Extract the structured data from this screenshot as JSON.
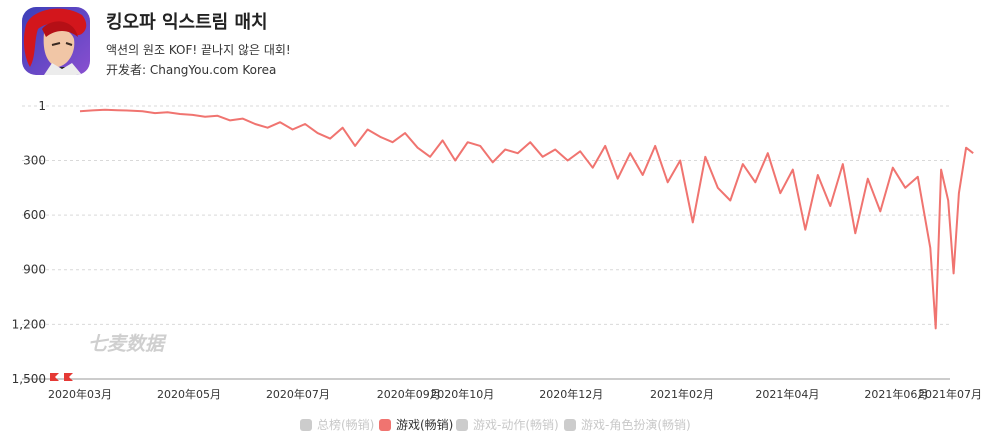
{
  "app": {
    "title": "킹오파 익스트림 매치",
    "subtitle": "액션의 원조 KOF! 끝나지 않은 대회!",
    "developer": "开发者: ChangYou.com Korea",
    "icon": "fighter-portrait-icon"
  },
  "watermark": "七麦数据",
  "colors": {
    "line": "#f07470",
    "grid": "#d9d9d9",
    "axis_text": "#333333",
    "legend_inactive": "#cccccc",
    "legend_active": "#f07470"
  },
  "legend": [
    {
      "label": "总榜(畅销)",
      "active": false
    },
    {
      "label": "游戏(畅销)",
      "active": true
    },
    {
      "label": "游戏-动作(畅销)",
      "active": false
    },
    {
      "label": "游戏-角色扮演(畅销)",
      "active": false
    }
  ],
  "chart_data": {
    "type": "line",
    "title": "",
    "xlabel": "",
    "ylabel": "",
    "y_inverted": true,
    "ylim": [
      1,
      1500
    ],
    "y_ticks": [
      "1",
      "300",
      "600",
      "900",
      "1,200",
      "1,500"
    ],
    "y_tick_values": [
      1,
      300,
      600,
      900,
      1200,
      1500
    ],
    "x_ticks": [
      "2020年03月",
      "2020年05月",
      "2020年07月",
      "2020年09月",
      "2020年10月",
      "2020年12月",
      "2021年02月",
      "2021年04月",
      "2021年06月",
      "2021年07月"
    ],
    "x_tick_dates": [
      "2020-03-01",
      "2020-05-01",
      "2020-07-01",
      "2020-09-01",
      "2020-10-01",
      "2020-12-01",
      "2021-02-01",
      "2021-04-01",
      "2021-06-01",
      "2021-07-01"
    ],
    "grid": true,
    "legend_position": "bottom",
    "series": [
      {
        "name": "游戏(畅销)",
        "color": "#f07470",
        "points": [
          [
            "2020-03-01",
            30
          ],
          [
            "2020-03-08",
            25
          ],
          [
            "2020-03-15",
            22
          ],
          [
            "2020-03-22",
            24
          ],
          [
            "2020-03-29",
            26
          ],
          [
            "2020-04-05",
            30
          ],
          [
            "2020-04-12",
            40
          ],
          [
            "2020-04-19",
            35
          ],
          [
            "2020-04-26",
            45
          ],
          [
            "2020-05-03",
            50
          ],
          [
            "2020-05-10",
            60
          ],
          [
            "2020-05-17",
            55
          ],
          [
            "2020-05-24",
            80
          ],
          [
            "2020-05-31",
            70
          ],
          [
            "2020-06-07",
            100
          ],
          [
            "2020-06-14",
            120
          ],
          [
            "2020-06-21",
            90
          ],
          [
            "2020-06-28",
            130
          ],
          [
            "2020-07-05",
            100
          ],
          [
            "2020-07-12",
            150
          ],
          [
            "2020-07-19",
            180
          ],
          [
            "2020-07-26",
            120
          ],
          [
            "2020-08-02",
            220
          ],
          [
            "2020-08-09",
            130
          ],
          [
            "2020-08-16",
            170
          ],
          [
            "2020-08-23",
            200
          ],
          [
            "2020-08-30",
            150
          ],
          [
            "2020-09-06",
            230
          ],
          [
            "2020-09-13",
            280
          ],
          [
            "2020-09-20",
            190
          ],
          [
            "2020-09-27",
            300
          ],
          [
            "2020-10-04",
            200
          ],
          [
            "2020-10-11",
            220
          ],
          [
            "2020-10-18",
            310
          ],
          [
            "2020-10-25",
            240
          ],
          [
            "2020-11-01",
            260
          ],
          [
            "2020-11-08",
            200
          ],
          [
            "2020-11-15",
            280
          ],
          [
            "2020-11-22",
            240
          ],
          [
            "2020-11-29",
            300
          ],
          [
            "2020-12-06",
            250
          ],
          [
            "2020-12-13",
            340
          ],
          [
            "2020-12-20",
            220
          ],
          [
            "2020-12-27",
            400
          ],
          [
            "2021-01-03",
            260
          ],
          [
            "2021-01-10",
            380
          ],
          [
            "2021-01-17",
            220
          ],
          [
            "2021-01-24",
            420
          ],
          [
            "2021-01-31",
            300
          ],
          [
            "2021-02-07",
            640
          ],
          [
            "2021-02-14",
            280
          ],
          [
            "2021-02-21",
            450
          ],
          [
            "2021-02-28",
            520
          ],
          [
            "2021-03-07",
            320
          ],
          [
            "2021-03-14",
            420
          ],
          [
            "2021-03-21",
            260
          ],
          [
            "2021-03-28",
            480
          ],
          [
            "2021-04-04",
            350
          ],
          [
            "2021-04-11",
            680
          ],
          [
            "2021-04-18",
            380
          ],
          [
            "2021-04-25",
            550
          ],
          [
            "2021-05-02",
            320
          ],
          [
            "2021-05-09",
            700
          ],
          [
            "2021-05-16",
            400
          ],
          [
            "2021-05-23",
            580
          ],
          [
            "2021-05-30",
            340
          ],
          [
            "2021-06-06",
            450
          ],
          [
            "2021-06-13",
            390
          ],
          [
            "2021-06-20",
            780
          ],
          [
            "2021-06-23",
            1222
          ],
          [
            "2021-06-26",
            350
          ],
          [
            "2021-06-30",
            520
          ],
          [
            "2021-07-03",
            920
          ],
          [
            "2021-07-06",
            480
          ],
          [
            "2021-07-10",
            230
          ],
          [
            "2021-07-14",
            260
          ]
        ]
      }
    ]
  }
}
